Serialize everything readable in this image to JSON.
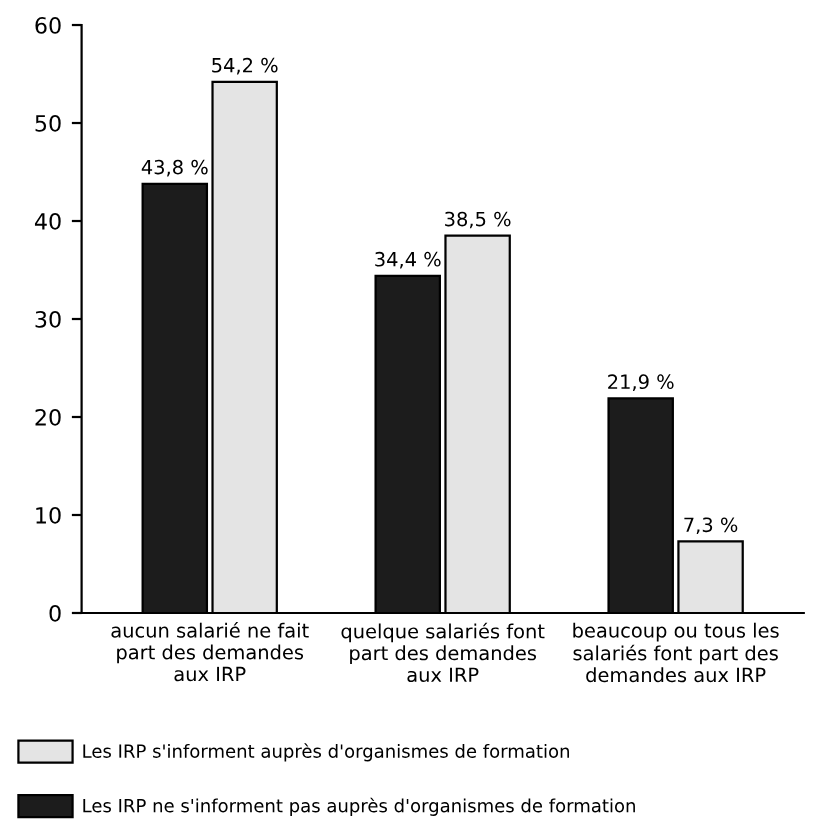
{
  "chart_data": {
    "type": "bar",
    "categories": [
      "aucun salarié ne fait\npart des demandes\naux IRP",
      "quelque salariés font\npart des demandes\naux IRP",
      "beaucoup ou tous les\nsalariés font part des\ndemandes aux IRP"
    ],
    "series": [
      {
        "name": "Les IRP ne s'informent pas auprès d'organismes de formation",
        "color": "#1c1c1c",
        "values": [
          43.8,
          34.4,
          21.9
        ],
        "value_labels": [
          "43,8 %",
          "34,4 %",
          "21,9 %"
        ]
      },
      {
        "name": "Les IRP s'informent auprès d'organismes de formation",
        "color": "#e4e4e4",
        "values": [
          54.2,
          38.5,
          7.3
        ],
        "value_labels": [
          "54,2 %",
          "38,5 %",
          "7,3 %"
        ]
      }
    ],
    "ylim": [
      0,
      60
    ],
    "yticks": [
      0,
      10,
      20,
      30,
      40,
      50,
      60
    ],
    "grid": false,
    "legend": "bottom"
  }
}
